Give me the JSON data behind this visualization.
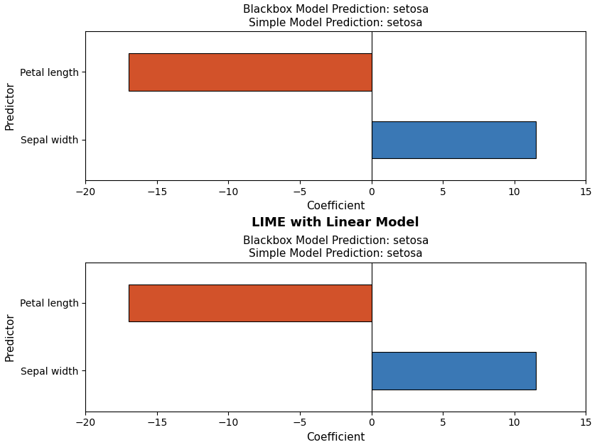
{
  "title": "LIME with Linear Model",
  "subtitle1": "Blackbox Model Prediction: setosa",
  "subtitle2": "Simple Model Prediction: setosa",
  "xlabel": "Coefficient",
  "ylabel": "Predictor",
  "categories": [
    "Sepal width",
    "Petal length"
  ],
  "values": [
    11.5,
    -17.0
  ],
  "bar_colors": [
    "#3A78B5",
    "#D2522A"
  ],
  "xlim": [
    -20,
    15
  ],
  "xticks": [
    -20,
    -15,
    -10,
    -5,
    0,
    5,
    10,
    15
  ],
  "title_fontsize": 13,
  "subtitle_fontsize": 11,
  "label_fontsize": 11,
  "tick_fontsize": 10,
  "bar_height": 0.55
}
